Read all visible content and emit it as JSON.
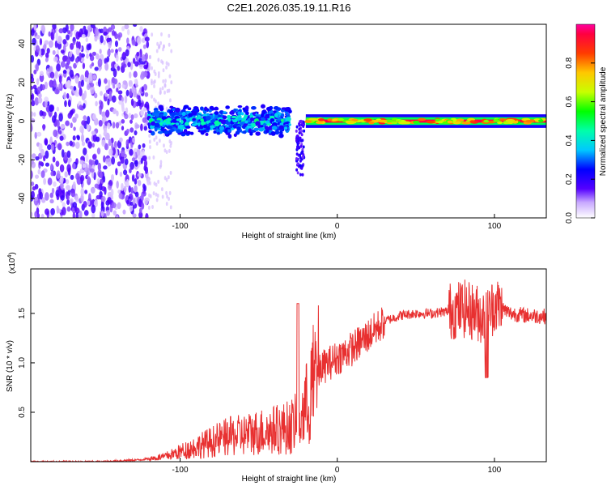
{
  "title": "C2E1.2026.035.19.11.R16",
  "chart_data": [
    {
      "type": "heatmap",
      "xlabel": "Height of straight line (km)",
      "ylabel": "Frequency (Hz)",
      "xlim": [
        -195,
        133
      ],
      "ylim": [
        -50,
        50
      ],
      "xticks": [
        -100,
        0,
        100
      ],
      "yticks": [
        -40,
        -20,
        0,
        20,
        40
      ],
      "colorbar": {
        "label": "Normalized spectral amplitude",
        "range": [
          0,
          1
        ],
        "ticks": [
          0.0,
          0.2,
          0.4,
          0.6,
          0.8
        ]
      },
      "regions": [
        {
          "name": "noise",
          "x_range": [
            -195,
            -120
          ],
          "f_range": [
            -50,
            50
          ],
          "amplitude": 0.15
        },
        {
          "name": "broadband-signal",
          "x_range": [
            -120,
            -30
          ],
          "f_range": [
            -8,
            8
          ],
          "amplitude": 0.3
        },
        {
          "name": "dip",
          "x_range": [
            -26,
            -21
          ],
          "f_range": [
            -30,
            0
          ],
          "amplitude": 0.2
        },
        {
          "name": "narrow-tone",
          "x_range": [
            -20,
            133
          ],
          "f_range": [
            -2,
            2
          ],
          "amplitude": 0.95
        }
      ]
    },
    {
      "type": "line",
      "xlabel": "Height of straight line (km)",
      "ylabel": "SNR (10 * v/v)",
      "scale_label": "(x10",
      "scale_exp": "4",
      "scale_close": ")",
      "xlim": [
        -195,
        133
      ],
      "ylim": [
        0,
        1.95
      ],
      "xticks": [
        -100,
        0,
        100
      ],
      "yticks": [
        0.5,
        1.0,
        1.5
      ],
      "color": "#e83030",
      "series": [
        {
          "name": "SNR",
          "x": [
            -195,
            -150,
            -125,
            -110,
            -100,
            -90,
            -80,
            -70,
            -60,
            -50,
            -40,
            -30,
            -25,
            -20,
            -15,
            -10,
            0,
            10,
            20,
            30,
            40,
            50,
            60,
            70,
            80,
            90,
            95,
            100,
            110,
            120,
            133
          ],
          "y": [
            0.0,
            0.0,
            0.02,
            0.05,
            0.1,
            0.15,
            0.2,
            0.25,
            0.27,
            0.3,
            0.32,
            0.35,
            0.4,
            0.55,
            0.8,
            0.95,
            1.05,
            1.15,
            1.28,
            1.42,
            1.48,
            1.5,
            1.5,
            1.52,
            1.55,
            1.5,
            1.45,
            1.6,
            1.5,
            1.48,
            1.47
          ]
        }
      ]
    }
  ]
}
